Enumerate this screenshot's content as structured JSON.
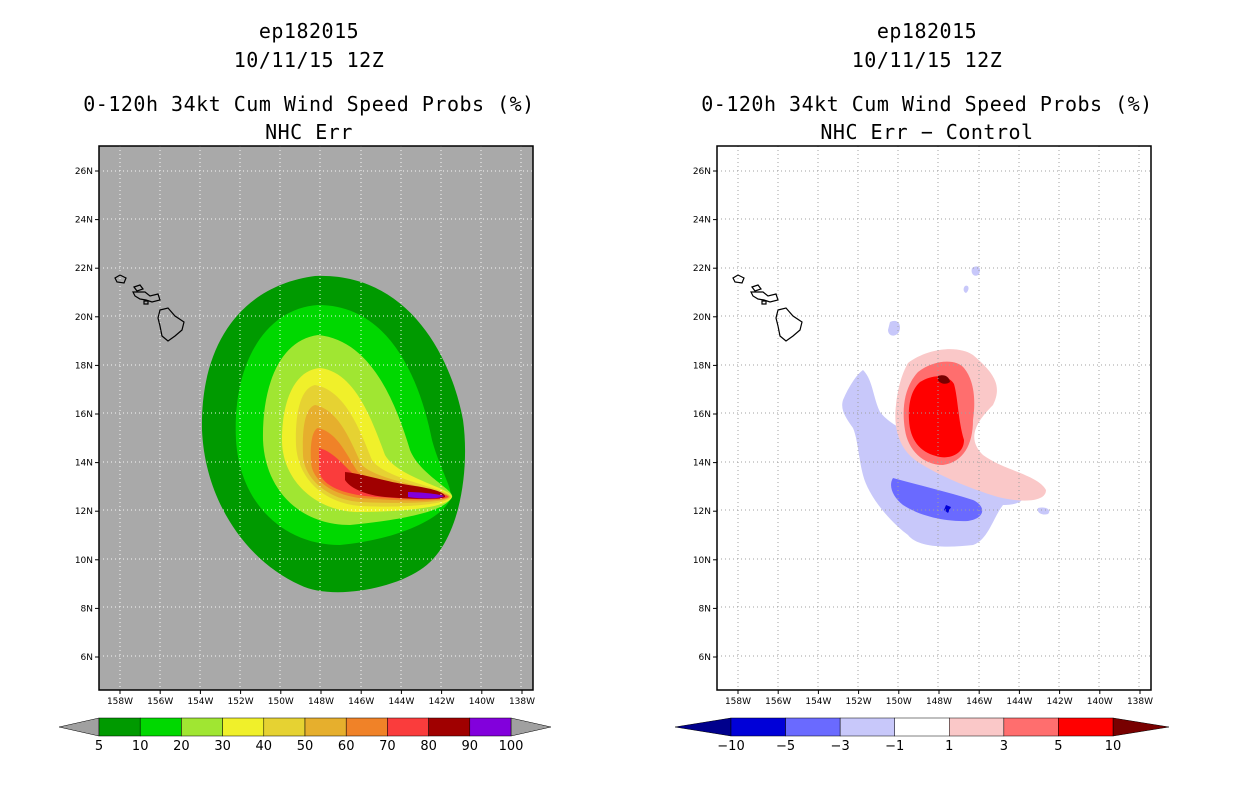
{
  "left_panel": {
    "storm_id": "ep182015",
    "datetime": "10/11/15 12Z",
    "product": "0-120h 34kt Cum Wind Speed Probs (%)",
    "subtitle": "NHC Err",
    "colorbar": {
      "labels": [
        "5",
        "10",
        "20",
        "30",
        "40",
        "50",
        "60",
        "70",
        "80",
        "90",
        "100"
      ],
      "colors": [
        "#009a00",
        "#00d800",
        "#a0e632",
        "#f0f02a",
        "#e6d232",
        "#e6af2d",
        "#f08228",
        "#fa3c3c",
        "#a00000",
        "#8200dc"
      ],
      "extend_color": "#a0a0a0"
    },
    "background_color": "#a9a9a9"
  },
  "right_panel": {
    "storm_id": "ep182015",
    "datetime": "10/11/15 12Z",
    "product": "0-120h 34kt Cum Wind Speed Probs (%)",
    "subtitle": "NHC Err − Control",
    "colorbar": {
      "labels": [
        "−10",
        "−5",
        "−3",
        "−1",
        "1",
        "3",
        "5",
        "10"
      ],
      "colors": [
        "#0000d8",
        "#6a6aff",
        "#c8c8fa",
        "#ffffff",
        "#fac8c8",
        "#ff6e6e",
        "#ff0000"
      ],
      "low_extend_color": "#00008c",
      "high_extend_color": "#780000"
    }
  },
  "axes": {
    "lat_ticks": [
      "26N",
      "24N",
      "22N",
      "20N",
      "18N",
      "16N",
      "14N",
      "12N",
      "10N",
      "8N",
      "6N"
    ],
    "lon_ticks": [
      "158W",
      "156W",
      "154W",
      "152W",
      "150W",
      "148W",
      "146W",
      "144W",
      "142W",
      "140W",
      "138W"
    ],
    "lat_values": [
      26,
      24,
      22,
      20,
      18,
      16,
      14,
      12,
      10,
      8,
      6
    ],
    "lon_values": [
      -158,
      -156,
      -154,
      -152,
      -150,
      -148,
      -146,
      -144,
      -142,
      -140,
      -138
    ]
  }
}
